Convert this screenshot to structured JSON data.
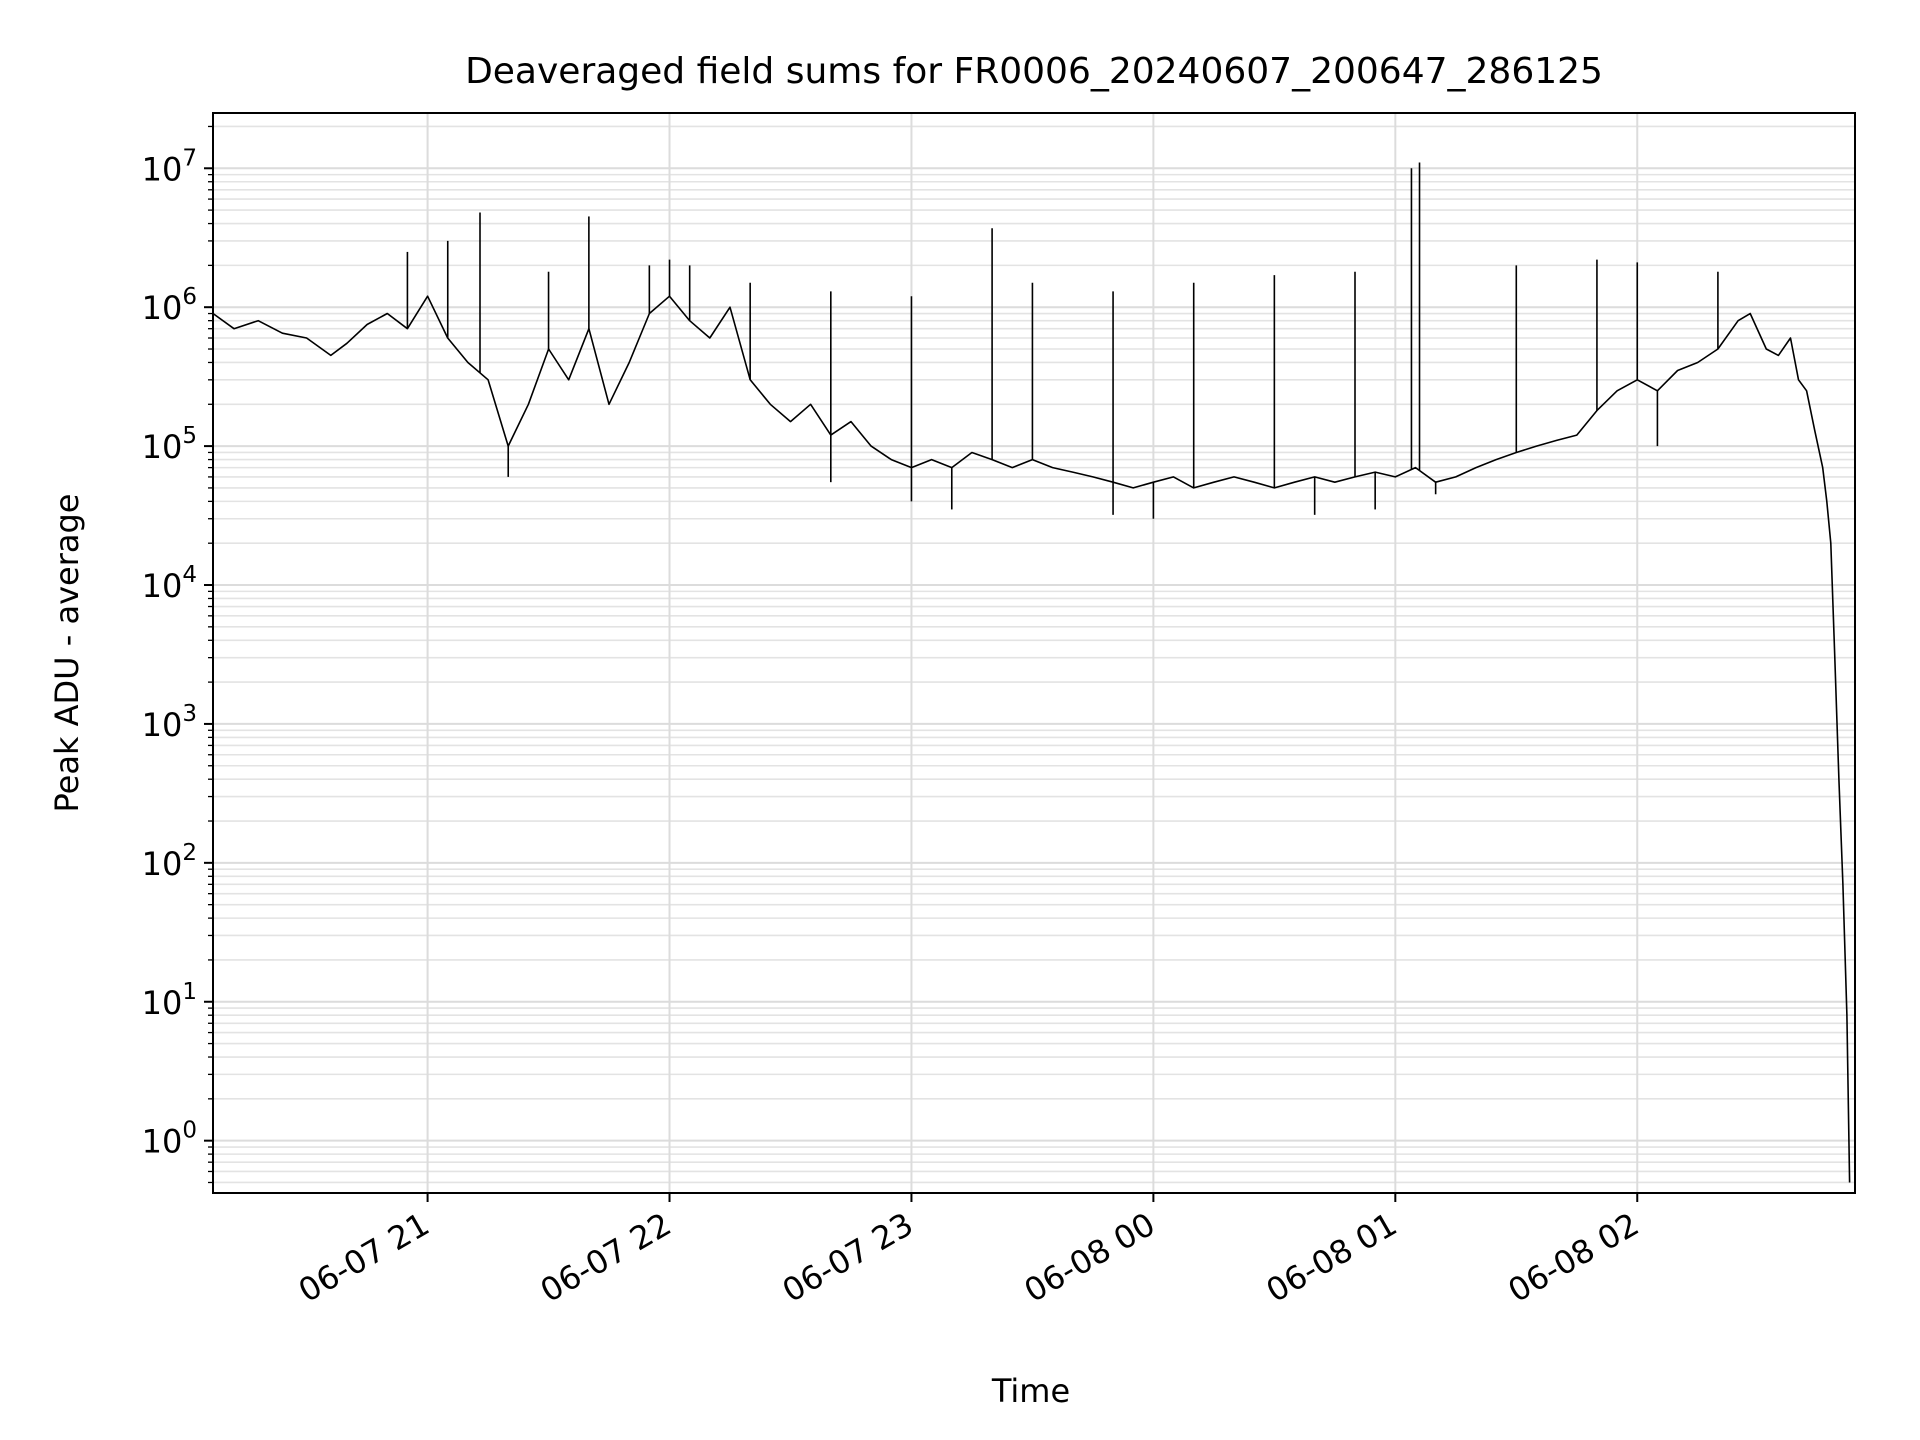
{
  "chart_data": {
    "type": "line",
    "title": "Deaveraged field sums for FR0006_20240607_200647_286125",
    "xlabel": "Time",
    "ylabel": "Peak ADU - average",
    "xlim": [
      "2024-06-07 20:06:47",
      "2024-06-08 02:54:00"
    ],
    "yscale": "log",
    "ylim": [
      0.42,
      25000000
    ],
    "grid": true,
    "x_ticks": [
      {
        "label": "06-07 21",
        "value": "2024-06-07 21:00"
      },
      {
        "label": "06-07 22",
        "value": "2024-06-07 22:00"
      },
      {
        "label": "06-07 23",
        "value": "2024-06-07 23:00"
      },
      {
        "label": "06-08 00",
        "value": "2024-06-08 00:00"
      },
      {
        "label": "06-08 01",
        "value": "2024-06-08 01:00"
      },
      {
        "label": "06-08 02",
        "value": "2024-06-08 02:00"
      }
    ],
    "y_ticks": [
      {
        "base": "10",
        "exp": "0",
        "value": 1
      },
      {
        "base": "10",
        "exp": "1",
        "value": 10
      },
      {
        "base": "10",
        "exp": "2",
        "value": 100
      },
      {
        "base": "10",
        "exp": "3",
        "value": 1000
      },
      {
        "base": "10",
        "exp": "4",
        "value": 10000
      },
      {
        "base": "10",
        "exp": "5",
        "value": 100000
      },
      {
        "base": "10",
        "exp": "6",
        "value": 1000000
      },
      {
        "base": "10",
        "exp": "7",
        "value": 10000000
      }
    ],
    "series": [
      {
        "color": "#000000",
        "points": [
          [
            "2024-06-07 20:06:47",
            900000
          ],
          [
            "2024-06-07 20:12",
            700000
          ],
          [
            "2024-06-07 20:18",
            800000
          ],
          [
            "2024-06-07 20:24",
            650000
          ],
          [
            "2024-06-07 20:30",
            600000
          ],
          [
            "2024-06-07 20:36",
            450000
          ],
          [
            "2024-06-07 20:40",
            550000
          ],
          [
            "2024-06-07 20:45",
            750000
          ],
          [
            "2024-06-07 20:50",
            900000
          ],
          [
            "2024-06-07 20:55",
            700000
          ],
          [
            "2024-06-07 21:00",
            1200000
          ],
          [
            "2024-06-07 21:05",
            600000
          ],
          [
            "2024-06-07 21:10",
            400000
          ],
          [
            "2024-06-07 21:15",
            300000
          ],
          [
            "2024-06-07 21:20",
            100000
          ],
          [
            "2024-06-07 21:25",
            200000
          ],
          [
            "2024-06-07 21:30",
            500000
          ],
          [
            "2024-06-07 21:35",
            300000
          ],
          [
            "2024-06-07 21:40",
            700000
          ],
          [
            "2024-06-07 21:45",
            200000
          ],
          [
            "2024-06-07 21:50",
            400000
          ],
          [
            "2024-06-07 21:55",
            900000
          ],
          [
            "2024-06-07 22:00",
            1200000
          ],
          [
            "2024-06-07 22:05",
            800000
          ],
          [
            "2024-06-07 22:10",
            600000
          ],
          [
            "2024-06-07 22:15",
            1000000
          ],
          [
            "2024-06-07 22:20",
            300000
          ],
          [
            "2024-06-07 22:25",
            200000
          ],
          [
            "2024-06-07 22:30",
            150000
          ],
          [
            "2024-06-07 22:35",
            200000
          ],
          [
            "2024-06-07 22:40",
            120000
          ],
          [
            "2024-06-07 22:45",
            150000
          ],
          [
            "2024-06-07 22:50",
            100000
          ],
          [
            "2024-06-07 22:55",
            80000
          ],
          [
            "2024-06-07 23:00",
            70000
          ],
          [
            "2024-06-07 23:05",
            80000
          ],
          [
            "2024-06-07 23:10",
            70000
          ],
          [
            "2024-06-07 23:15",
            90000
          ],
          [
            "2024-06-07 23:20",
            80000
          ],
          [
            "2024-06-07 23:25",
            70000
          ],
          [
            "2024-06-07 23:30",
            80000
          ],
          [
            "2024-06-07 23:35",
            70000
          ],
          [
            "2024-06-07 23:40",
            65000
          ],
          [
            "2024-06-07 23:45",
            60000
          ],
          [
            "2024-06-07 23:50",
            55000
          ],
          [
            "2024-06-07 23:55",
            50000
          ],
          [
            "2024-06-08 00:00",
            55000
          ],
          [
            "2024-06-08 00:05",
            60000
          ],
          [
            "2024-06-08 00:10",
            50000
          ],
          [
            "2024-06-08 00:15",
            55000
          ],
          [
            "2024-06-08 00:20",
            60000
          ],
          [
            "2024-06-08 00:25",
            55000
          ],
          [
            "2024-06-08 00:30",
            50000
          ],
          [
            "2024-06-08 00:35",
            55000
          ],
          [
            "2024-06-08 00:40",
            60000
          ],
          [
            "2024-06-08 00:45",
            55000
          ],
          [
            "2024-06-08 00:50",
            60000
          ],
          [
            "2024-06-08 00:55",
            65000
          ],
          [
            "2024-06-08 01:00",
            60000
          ],
          [
            "2024-06-08 01:05",
            70000
          ],
          [
            "2024-06-08 01:10",
            55000
          ],
          [
            "2024-06-08 01:15",
            60000
          ],
          [
            "2024-06-08 01:20",
            70000
          ],
          [
            "2024-06-08 01:25",
            80000
          ],
          [
            "2024-06-08 01:30",
            90000
          ],
          [
            "2024-06-08 01:35",
            100000
          ],
          [
            "2024-06-08 01:40",
            110000
          ],
          [
            "2024-06-08 01:45",
            120000
          ],
          [
            "2024-06-08 01:50",
            180000
          ],
          [
            "2024-06-08 01:55",
            250000
          ],
          [
            "2024-06-08 02:00",
            300000
          ],
          [
            "2024-06-08 02:05",
            250000
          ],
          [
            "2024-06-08 02:10",
            350000
          ],
          [
            "2024-06-08 02:15",
            400000
          ],
          [
            "2024-06-08 02:20",
            500000
          ],
          [
            "2024-06-08 02:25",
            800000
          ],
          [
            "2024-06-08 02:28",
            900000
          ],
          [
            "2024-06-08 02:32",
            500000
          ],
          [
            "2024-06-08 02:35",
            450000
          ],
          [
            "2024-06-08 02:38",
            600000
          ],
          [
            "2024-06-08 02:40",
            300000
          ],
          [
            "2024-06-08 02:42",
            250000
          ],
          [
            "2024-06-08 02:44",
            130000
          ],
          [
            "2024-06-08 02:46",
            70000
          ],
          [
            "2024-06-08 02:47",
            40000
          ],
          [
            "2024-06-08 02:48",
            20000
          ],
          [
            "2024-06-08 02:49",
            3000
          ],
          [
            "2024-06-08 02:50",
            400
          ],
          [
            "2024-06-08 02:51",
            70
          ],
          [
            "2024-06-08 02:52",
            8
          ],
          [
            "2024-06-08 02:52:40",
            0.5
          ]
        ],
        "spikes": [
          [
            "2024-06-07 20:55",
            2500000
          ],
          [
            "2024-06-07 21:05",
            3000000
          ],
          [
            "2024-06-07 21:13",
            4800000
          ],
          [
            "2024-06-07 21:30",
            1800000
          ],
          [
            "2024-06-07 21:40",
            4500000
          ],
          [
            "2024-06-07 21:55",
            2000000
          ],
          [
            "2024-06-07 22:00",
            2200000
          ],
          [
            "2024-06-07 22:05",
            2000000
          ],
          [
            "2024-06-07 22:20",
            1500000
          ],
          [
            "2024-06-07 22:40",
            1300000
          ],
          [
            "2024-06-07 23:00",
            1200000
          ],
          [
            "2024-06-07 23:20",
            3700000
          ],
          [
            "2024-06-07 23:30",
            1500000
          ],
          [
            "2024-06-07 23:50",
            1300000
          ],
          [
            "2024-06-08 00:10",
            1500000
          ],
          [
            "2024-06-08 00:30",
            1700000
          ],
          [
            "2024-06-08 00:50",
            1800000
          ],
          [
            "2024-06-08 01:04",
            10000000
          ],
          [
            "2024-06-08 01:06",
            11000000
          ],
          [
            "2024-06-08 01:30",
            2000000
          ],
          [
            "2024-06-08 01:50",
            2200000
          ],
          [
            "2024-06-08 02:00",
            2100000
          ],
          [
            "2024-06-08 02:20",
            1800000
          ]
        ],
        "dips": [
          [
            "2024-06-07 21:20",
            60000
          ],
          [
            "2024-06-07 22:40",
            55000
          ],
          [
            "2024-06-07 23:00",
            40000
          ],
          [
            "2024-06-07 23:10",
            35000
          ],
          [
            "2024-06-07 23:50",
            32000
          ],
          [
            "2024-06-08 00:00",
            30000
          ],
          [
            "2024-06-08 00:40",
            32000
          ],
          [
            "2024-06-08 00:55",
            35000
          ],
          [
            "2024-06-08 01:10",
            45000
          ],
          [
            "2024-06-08 02:05",
            100000
          ]
        ]
      }
    ]
  }
}
